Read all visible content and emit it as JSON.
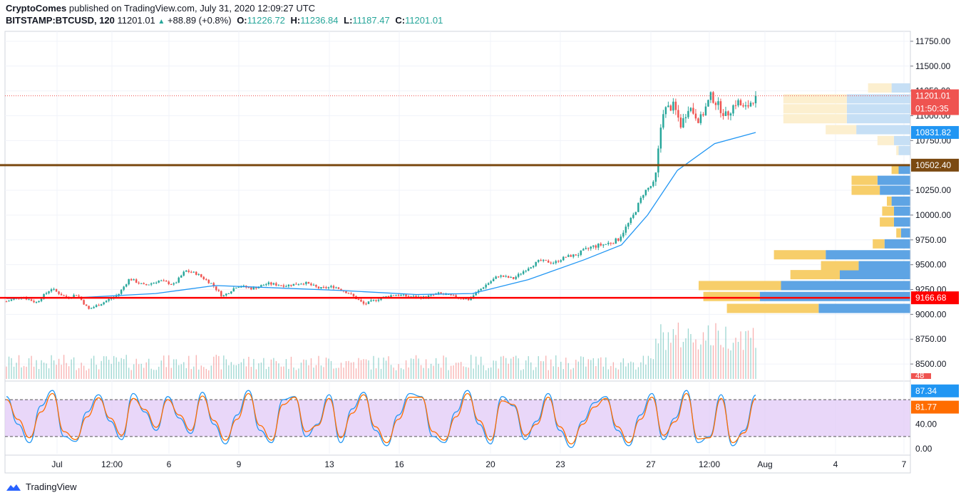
{
  "header": {
    "author": "CryptoComes",
    "published": "published on TradingView.com, July 31, 2020 12:09:27 UTC",
    "symbol": "BITSTAMP:BTCUSD, 120",
    "last": "11201.01",
    "change": "+88.89 (+0.8%)",
    "o_label": "O:",
    "o": "11226.72",
    "h_label": "H:",
    "h": "11236.84",
    "l_label": "L:",
    "l": "11187.47",
    "c_label": "C:",
    "c": "11201.01"
  },
  "footer": {
    "brand": "TradingView"
  },
  "colors": {
    "up": "#26a69a",
    "down": "#ef5350",
    "ma": "#2196f3",
    "support": "#ff0000",
    "resistance": "#7b4a12",
    "vp_blue": "#5ea4e4",
    "vp_yellow": "#f7ce6a",
    "vp_blue_light": "#c6dff5",
    "vp_yellow_light": "#fcefcf",
    "stoch_k": "#2196f3",
    "stoch_d": "#ff6d00",
    "stoch_band": "#e1c9f7"
  },
  "chart_data": [
    {
      "type": "candlestick",
      "title": "BITSTAMP:BTCUSD, 120",
      "ylim": [
        8350,
        11850
      ],
      "y_ticks": [
        "11750.00",
        "11500.00",
        "11250.00",
        "11000.00",
        "10750.00",
        "10250.00",
        "10000.00",
        "9750.00",
        "9500.00",
        "9250.00",
        "9000.00",
        "8750.00",
        "8500.00"
      ],
      "x_ticks": [
        "Jul",
        "12:00",
        "6",
        "9",
        "13",
        "16",
        "20",
        "23",
        "27",
        "12:00",
        "Aug",
        "4",
        "7"
      ],
      "price_path": [
        [
          0,
          9130
        ],
        [
          4,
          9180
        ],
        [
          8,
          9120
        ],
        [
          12,
          9260
        ],
        [
          16,
          9170
        ],
        [
          19,
          9200
        ],
        [
          22,
          9050
        ],
        [
          26,
          9120
        ],
        [
          30,
          9200
        ],
        [
          33,
          9360
        ],
        [
          37,
          9290
        ],
        [
          41,
          9340
        ],
        [
          45,
          9300
        ],
        [
          48,
          9440
        ],
        [
          51,
          9410
        ],
        [
          55,
          9310
        ],
        [
          58,
          9180
        ],
        [
          62,
          9290
        ],
        [
          66,
          9260
        ],
        [
          70,
          9310
        ],
        [
          75,
          9290
        ],
        [
          80,
          9320
        ],
        [
          84,
          9260
        ],
        [
          88,
          9280
        ],
        [
          92,
          9210
        ],
        [
          96,
          9100
        ],
        [
          100,
          9160
        ],
        [
          104,
          9200
        ],
        [
          108,
          9180
        ],
        [
          112,
          9170
        ],
        [
          116,
          9210
        ],
        [
          120,
          9180
        ],
        [
          124,
          9150
        ],
        [
          128,
          9280
        ],
        [
          132,
          9390
        ],
        [
          136,
          9360
        ],
        [
          140,
          9470
        ],
        [
          143,
          9540
        ],
        [
          147,
          9520
        ],
        [
          150,
          9580
        ],
        [
          153,
          9600
        ],
        [
          157,
          9680
        ],
        [
          161,
          9710
        ],
        [
          164,
          9750
        ],
        [
          168,
          9980
        ],
        [
          171,
          10230
        ],
        [
          174,
          10330
        ],
        [
          176,
          11050
        ],
        [
          179,
          11100
        ],
        [
          181,
          10900
        ],
        [
          183,
          11100
        ],
        [
          186,
          10950
        ],
        [
          189,
          11200
        ],
        [
          193,
          11000
        ],
        [
          196,
          11150
        ],
        [
          198,
          11060
        ],
        [
          201,
          11201.01
        ]
      ],
      "ma_path": [
        [
          0,
          9160
        ],
        [
          20,
          9170
        ],
        [
          40,
          9210
        ],
        [
          56,
          9290
        ],
        [
          70,
          9270
        ],
        [
          90,
          9240
        ],
        [
          110,
          9200
        ],
        [
          125,
          9210
        ],
        [
          140,
          9350
        ],
        [
          155,
          9550
        ],
        [
          165,
          9700
        ],
        [
          172,
          10000
        ],
        [
          180,
          10450
        ],
        [
          190,
          10720
        ],
        [
          201,
          10831.82
        ]
      ],
      "volume_profile": [
        {
          "price": 9180,
          "buy": 0.64,
          "sell": 0.24
        },
        {
          "price": 9060,
          "buy": 0.39,
          "sell": 0.39
        },
        {
          "price": 9290,
          "buy": 0.55,
          "sell": 0.35
        },
        {
          "price": 9400,
          "buy": 0.3,
          "sell": 0.21
        },
        {
          "price": 9490,
          "buy": 0.22,
          "sell": 0.16
        },
        {
          "price": 9600,
          "buy": 0.36,
          "sell": 0.22
        },
        {
          "price": 9710,
          "buy": 0.11,
          "sell": 0.05
        },
        {
          "price": 9820,
          "buy": 0.04,
          "sell": 0.02
        },
        {
          "price": 9930,
          "buy": 0.07,
          "sell": 0.06
        },
        {
          "price": 10040,
          "buy": 0.07,
          "sell": 0.05
        },
        {
          "price": 10140,
          "buy": 0.08,
          "sell": 0.02
        },
        {
          "price": 10250,
          "buy": 0.13,
          "sell": 0.12
        },
        {
          "price": 10350,
          "buy": 0.14,
          "sell": 0.11
        },
        {
          "price": 10460,
          "buy": 0.05,
          "sell": 0.03
        },
        {
          "price": 10650,
          "buy": 0.05,
          "sell": 0.01
        },
        {
          "price": 10750,
          "buy": 0.07,
          "sell": 0.07
        },
        {
          "price": 10860,
          "buy": 0.23,
          "sell": 0.13
        },
        {
          "price": 10970,
          "buy": 0.27,
          "sell": 0.27
        },
        {
          "price": 11070,
          "buy": 0.27,
          "sell": 0.27
        },
        {
          "price": 11170,
          "buy": 0.27,
          "sell": 0.27
        },
        {
          "price": 11280,
          "buy": 0.08,
          "sell": 0.1
        }
      ],
      "horizontal_levels": [
        {
          "value": 10502.4,
          "label": "10502.40",
          "color": "#7b4a12"
        },
        {
          "value": 9166.68,
          "label": "9166.68",
          "color": "#ff0000"
        }
      ],
      "price_labels": [
        {
          "value": 11201.01,
          "label": "11201.01",
          "sub": "01:50:35",
          "color": "#ef5350"
        },
        {
          "value": 10831.82,
          "label": "10831.82",
          "color": "#2196f3"
        }
      ],
      "volume_label": "48"
    },
    {
      "type": "line",
      "title": "Stochastic RSI",
      "ylim": [
        -8,
        108
      ],
      "y_ticks": [
        "40.00",
        "0.00"
      ],
      "upper_band": 80,
      "lower_band": 20,
      "series": [
        {
          "values": [
            85,
            40,
            10,
            70,
            95,
            20,
            12,
            60,
            88,
            45,
            15,
            90,
            60,
            30,
            85,
            50,
            25,
            92,
            40,
            8,
            55,
            95,
            30,
            10,
            80,
            85,
            20,
            40,
            88,
            10,
            65,
            92,
            30,
            5,
            55,
            90,
            85,
            20,
            10,
            60,
            95,
            40,
            8,
            85,
            70,
            15,
            45,
            90,
            30,
            2,
            45,
            75,
            85,
            30,
            5,
            55,
            90,
            15,
            50,
            95,
            10,
            20,
            88,
            5,
            30,
            87.34
          ]
        },
        {
          "values": [
            80,
            48,
            18,
            60,
            90,
            28,
            15,
            52,
            83,
            50,
            22,
            82,
            64,
            35,
            80,
            55,
            30,
            86,
            46,
            14,
            48,
            90,
            38,
            14,
            72,
            84,
            28,
            38,
            82,
            18,
            58,
            88,
            36,
            10,
            48,
            84,
            84,
            28,
            14,
            52,
            90,
            46,
            14,
            78,
            72,
            22,
            40,
            84,
            36,
            8,
            40,
            68,
            82,
            36,
            10,
            48,
            84,
            22,
            44,
            90,
            16,
            18,
            82,
            10,
            26,
            81.77
          ]
        }
      ],
      "price_labels": [
        {
          "value": 87.34,
          "label": "87.34",
          "color": "#2196f3"
        },
        {
          "value": 81.77,
          "label": "81.77",
          "color": "#ff6d00"
        }
      ]
    }
  ]
}
